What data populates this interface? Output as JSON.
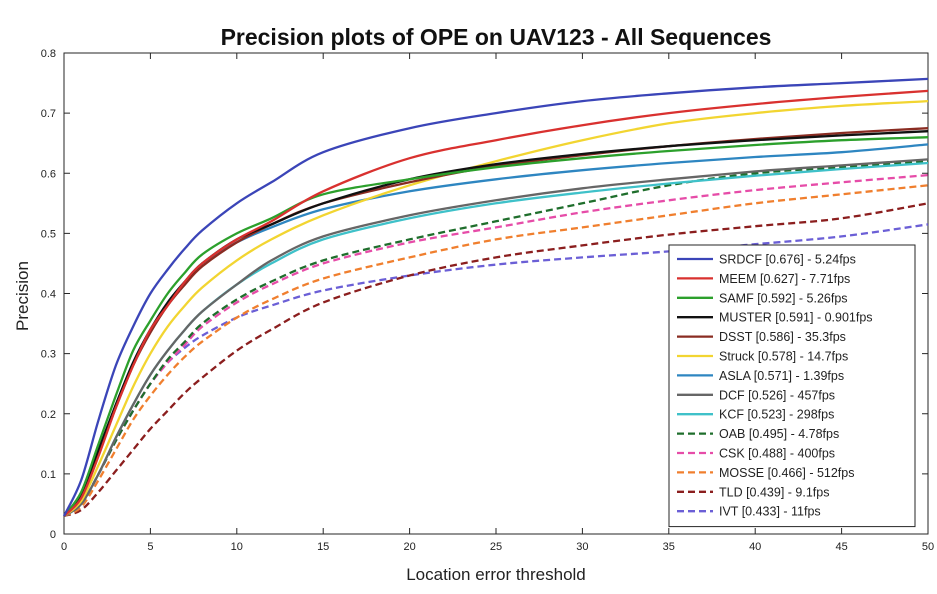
{
  "chart_data": {
    "type": "line",
    "title": "Precision plots of OPE on UAV123 - All Sequences",
    "xlabel": "Location error threshold",
    "ylabel": "Precision",
    "xlim": [
      0,
      50
    ],
    "ylim": [
      0,
      0.8
    ],
    "xticks": [
      "0",
      "5",
      "10",
      "15",
      "20",
      "25",
      "30",
      "35",
      "40",
      "45",
      "50"
    ],
    "yticks": [
      "0",
      "0.1",
      "0.2",
      "0.3",
      "0.4",
      "0.5",
      "0.6",
      "0.7",
      "0.8"
    ],
    "grid": false,
    "legend_position": "bottom-right",
    "x": [
      0,
      1,
      2,
      3,
      4,
      5,
      6,
      7,
      8,
      10,
      12,
      15,
      20,
      25,
      30,
      35,
      40,
      45,
      50
    ],
    "series": [
      {
        "name": "SRDCF [0.676] - 5.24fps",
        "color": "#3b45b8",
        "dash": "solid",
        "values": [
          0.03,
          0.09,
          0.19,
          0.28,
          0.345,
          0.4,
          0.44,
          0.475,
          0.505,
          0.55,
          0.585,
          0.635,
          0.675,
          0.7,
          0.72,
          0.733,
          0.743,
          0.75,
          0.757
        ]
      },
      {
        "name": "MEEM [0.627] - 7.71fps",
        "color": "#d9312f",
        "dash": "solid",
        "values": [
          0.03,
          0.06,
          0.13,
          0.21,
          0.28,
          0.34,
          0.38,
          0.42,
          0.45,
          0.49,
          0.52,
          0.57,
          0.625,
          0.655,
          0.68,
          0.7,
          0.715,
          0.727,
          0.737
        ]
      },
      {
        "name": "SAMF [0.592] - 5.26fps",
        "color": "#2ca02c",
        "dash": "solid",
        "values": [
          0.03,
          0.07,
          0.15,
          0.23,
          0.305,
          0.355,
          0.4,
          0.435,
          0.465,
          0.5,
          0.525,
          0.565,
          0.59,
          0.61,
          0.625,
          0.637,
          0.647,
          0.655,
          0.66
        ]
      },
      {
        "name": "MUSTER [0.591] - 0.901fps",
        "color": "#111111",
        "dash": "solid",
        "values": [
          0.03,
          0.065,
          0.14,
          0.215,
          0.285,
          0.34,
          0.385,
          0.42,
          0.45,
          0.49,
          0.515,
          0.55,
          0.59,
          0.615,
          0.632,
          0.645,
          0.655,
          0.663,
          0.67
        ]
      },
      {
        "name": "DSST [0.586] - 35.3fps",
        "color": "#8a2c22",
        "dash": "solid",
        "values": [
          0.03,
          0.065,
          0.135,
          0.21,
          0.28,
          0.335,
          0.38,
          0.415,
          0.445,
          0.485,
          0.515,
          0.55,
          0.585,
          0.612,
          0.63,
          0.645,
          0.657,
          0.667,
          0.675
        ]
      },
      {
        "name": "Struck [0.578] - 14.7fps",
        "color": "#f2d531",
        "dash": "solid",
        "values": [
          0.03,
          0.055,
          0.115,
          0.18,
          0.245,
          0.3,
          0.345,
          0.38,
          0.41,
          0.455,
          0.49,
          0.53,
          0.58,
          0.62,
          0.655,
          0.683,
          0.7,
          0.712,
          0.72
        ]
      },
      {
        "name": "ASLA [0.571] - 1.39fps",
        "color": "#2e86c1",
        "dash": "solid",
        "values": [
          0.03,
          0.065,
          0.14,
          0.215,
          0.285,
          0.34,
          0.385,
          0.42,
          0.45,
          0.485,
          0.51,
          0.54,
          0.57,
          0.59,
          0.605,
          0.617,
          0.627,
          0.635,
          0.648
        ]
      },
      {
        "name": "DCF [0.526] - 457fps",
        "color": "#666666",
        "dash": "solid",
        "values": [
          0.03,
          0.05,
          0.1,
          0.16,
          0.215,
          0.265,
          0.305,
          0.34,
          0.37,
          0.415,
          0.455,
          0.495,
          0.53,
          0.555,
          0.575,
          0.59,
          0.603,
          0.613,
          0.623
        ]
      },
      {
        "name": "KCF [0.523] - 298fps",
        "color": "#3fc1c9",
        "dash": "solid",
        "values": [
          0.03,
          0.05,
          0.1,
          0.16,
          0.215,
          0.265,
          0.305,
          0.34,
          0.37,
          0.415,
          0.45,
          0.49,
          0.525,
          0.55,
          0.568,
          0.583,
          0.596,
          0.607,
          0.617
        ]
      },
      {
        "name": "OAB [0.495] - 4.78fps",
        "color": "#1f6e2c",
        "dash": "dashed",
        "values": [
          0.03,
          0.05,
          0.1,
          0.155,
          0.205,
          0.25,
          0.29,
          0.32,
          0.35,
          0.39,
          0.42,
          0.455,
          0.49,
          0.52,
          0.55,
          0.58,
          0.6,
          0.61,
          0.62
        ]
      },
      {
        "name": "CSK [0.488] - 400fps",
        "color": "#e64ca8",
        "dash": "dashed",
        "values": [
          0.03,
          0.05,
          0.1,
          0.155,
          0.205,
          0.25,
          0.285,
          0.315,
          0.345,
          0.385,
          0.415,
          0.45,
          0.485,
          0.51,
          0.535,
          0.555,
          0.572,
          0.585,
          0.597
        ]
      },
      {
        "name": "MOSSE [0.466] - 512fps",
        "color": "#f07f2e",
        "dash": "dashed",
        "values": [
          0.03,
          0.045,
          0.09,
          0.14,
          0.19,
          0.23,
          0.265,
          0.295,
          0.32,
          0.36,
          0.39,
          0.425,
          0.46,
          0.49,
          0.51,
          0.53,
          0.55,
          0.565,
          0.58
        ]
      },
      {
        "name": "TLD [0.439] - 9.1fps",
        "color": "#8b1e1e",
        "dash": "dashed",
        "values": [
          0.03,
          0.04,
          0.07,
          0.105,
          0.14,
          0.175,
          0.205,
          0.235,
          0.26,
          0.305,
          0.34,
          0.385,
          0.43,
          0.46,
          0.48,
          0.498,
          0.512,
          0.525,
          0.55
        ]
      },
      {
        "name": "IVT [0.433] - 11fps",
        "color": "#6b5fd6",
        "dash": "dashed",
        "values": [
          0.03,
          0.05,
          0.1,
          0.155,
          0.205,
          0.25,
          0.285,
          0.31,
          0.33,
          0.36,
          0.38,
          0.405,
          0.43,
          0.448,
          0.46,
          0.47,
          0.482,
          0.495,
          0.515
        ]
      }
    ]
  }
}
